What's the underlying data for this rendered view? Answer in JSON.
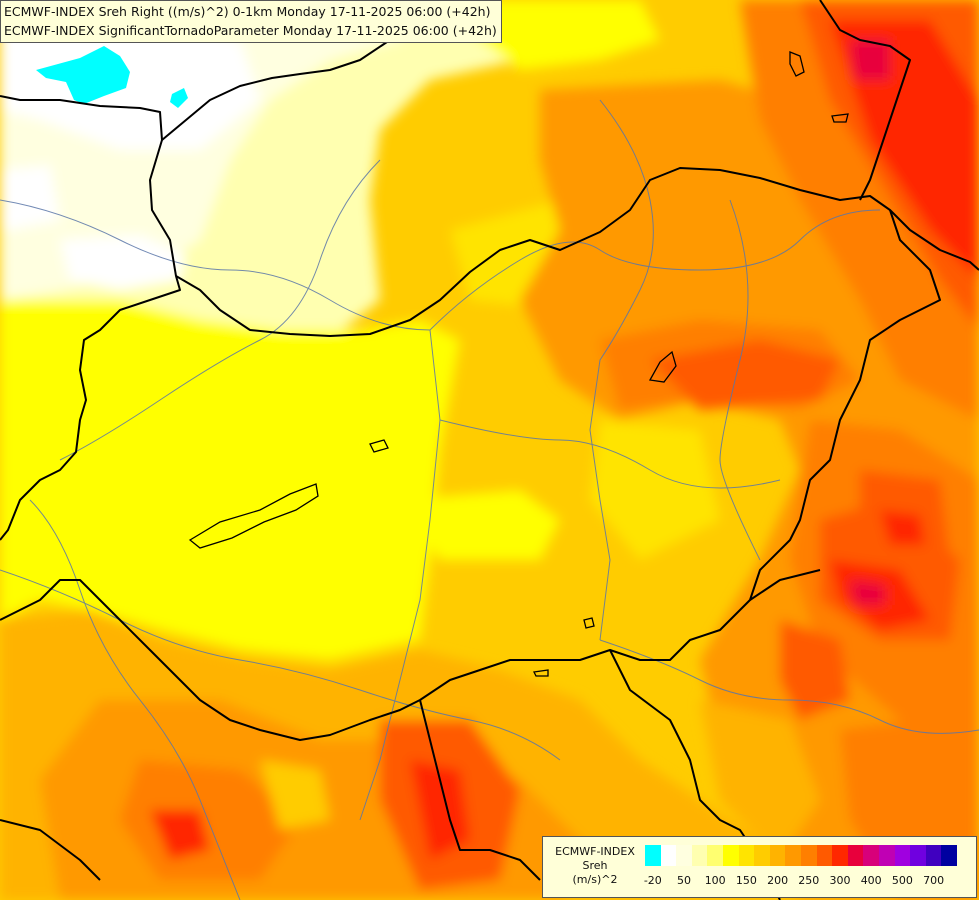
{
  "title": {
    "line1": "ECMWF-INDEX Sreh Right ((m/s)^2) 0-1km Monday 17-11-2025 06:00 (+42h)",
    "line2": "ECMWF-INDEX SignificantTornadoParameter Monday 17-11-2025 06:00 (+42h)"
  },
  "legend": {
    "source": "ECMWF-INDEX",
    "parameter": "Sreh",
    "unit": "(m/s)^2",
    "colors": [
      "#00ffff",
      "#ffffff",
      "#ffffe0",
      "#ffffb0",
      "#ffff70",
      "#ffff00",
      "#ffe400",
      "#ffcc00",
      "#ffb300",
      "#ff9900",
      "#ff7f00",
      "#ff5a00",
      "#ff2800",
      "#e8003c",
      "#d8007a",
      "#c000b4",
      "#a000e0",
      "#7000e0",
      "#4000c0",
      "#0000a0"
    ],
    "ticks": [
      {
        "label": "-20",
        "index": 0.5
      },
      {
        "label": "50",
        "index": 2.5
      },
      {
        "label": "100",
        "index": 4.5
      },
      {
        "label": "150",
        "index": 6.5
      },
      {
        "label": "200",
        "index": 8.5
      },
      {
        "label": "250",
        "index": 10.5
      },
      {
        "label": "300",
        "index": 12.5
      },
      {
        "label": "400",
        "index": 14.5
      },
      {
        "label": "500",
        "index": 16.5
      },
      {
        "label": "700",
        "index": 18.5
      }
    ]
  }
}
